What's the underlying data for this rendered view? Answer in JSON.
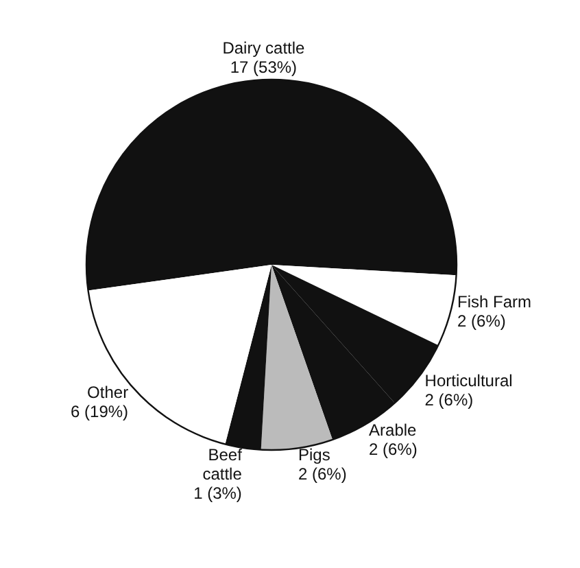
{
  "chart_data": {
    "type": "pie",
    "categories": [
      "Dairy cattle",
      "Fish Farm",
      "Horticultural",
      "Arable",
      "Pigs",
      "Beef cattle",
      "Other"
    ],
    "values": [
      17,
      2,
      2,
      2,
      2,
      1,
      6
    ],
    "colors": [
      "#111111",
      "#ffffff",
      "#111111",
      "#111111",
      "#bbbbbb",
      "#111111",
      "#ffffff"
    ],
    "value_labels": [
      "17 (53%)",
      "2 (6%)",
      "2 (6%)",
      "2 (6%)",
      "2 (6%)",
      "1 (3%)",
      "6 (19%)"
    ],
    "legend": false
  }
}
